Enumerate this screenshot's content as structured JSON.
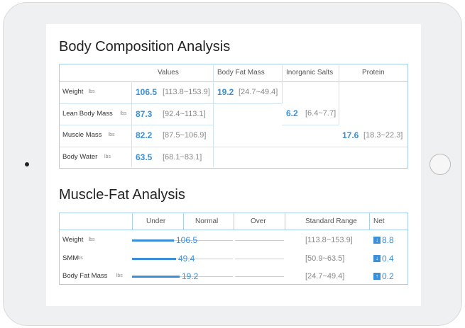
{
  "composition": {
    "title": "Body Composition Analysis",
    "headers": [
      "Values",
      "Body Fat Mass",
      "Inorganic Salts",
      "Protein"
    ],
    "rows": [
      {
        "label": "Weight",
        "unit": "lbs",
        "value": 106.5,
        "range": "[113.8~153.9]"
      },
      {
        "label": "Lean Body Mass",
        "unit": "lbs",
        "value": 87.3,
        "range": "[92.4~113.1]"
      },
      {
        "label": "Muscle Mass",
        "unit": "lbs",
        "value": 82.2,
        "range": "[87.5~106.9]"
      },
      {
        "label": "Body Water",
        "unit": "lbs",
        "value": 63.5,
        "range": "[68.1~83.1]"
      }
    ],
    "fat": {
      "value": 19.2,
      "range": "[24.7~49.4]"
    },
    "salts": {
      "value": 6.2,
      "range": "[6.4~7.7]"
    },
    "protein": {
      "value": 17.6,
      "range": "[18.3~22.3]"
    }
  },
  "muscle_fat": {
    "title": "Muscle-Fat Analysis",
    "headers": [
      "Under",
      "Normal",
      "Over",
      "Standard Range",
      "Net"
    ],
    "rows": [
      {
        "label": "Weight",
        "unit": "lbs",
        "value": 106.5,
        "range": "[113.8~153.9]",
        "net": 8.8
      },
      {
        "label": "SMM",
        "unit": "lbs",
        "value": 49.4,
        "range": "[50.9~63.5]",
        "net": 0.4
      },
      {
        "label": "Body Fat Mass",
        "unit": "lbs",
        "value": 19.2,
        "range": "[24.7~49.4]",
        "net": 0.2
      }
    ]
  }
}
